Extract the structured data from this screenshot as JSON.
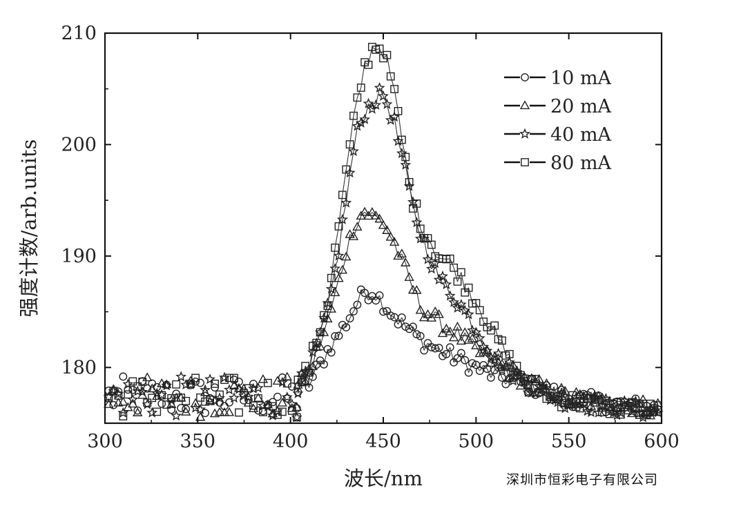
{
  "chart_data": {
    "type": "scatter",
    "xlabel": "波长/nm",
    "ylabel": "强度计数/arb.units",
    "xlim": [
      300,
      600
    ],
    "ylim": [
      175,
      210
    ],
    "xticks": [
      300,
      350,
      400,
      450,
      500,
      550,
      600
    ],
    "yticks": [
      180,
      190,
      200,
      210
    ],
    "legend_position": "top-right",
    "baseline_noise_band": [
      175.5,
      179.2
    ],
    "series": [
      {
        "name": "10 mA",
        "marker": "circle",
        "x": [
          400,
          410,
          420,
          430,
          435,
          440,
          445,
          450,
          455,
          460,
          470,
          480,
          490,
          500,
          510,
          520,
          530,
          540,
          550,
          570,
          600
        ],
        "y": [
          177.5,
          178.5,
          181.5,
          184.0,
          185.5,
          186.8,
          186.8,
          185.8,
          184.8,
          184.0,
          182.5,
          181.5,
          180.8,
          180.0,
          179.3,
          178.8,
          178.3,
          177.8,
          177.3,
          176.8,
          176.3
        ]
      },
      {
        "name": "20 mA",
        "marker": "triangle",
        "x": [
          400,
          410,
          420,
          425,
          430,
          435,
          440,
          445,
          450,
          455,
          460,
          465,
          470,
          480,
          490,
          500,
          510,
          520,
          530,
          540,
          550,
          570,
          600
        ],
        "y": [
          177.5,
          179.5,
          184.0,
          187.0,
          190.5,
          193.0,
          194.0,
          193.5,
          193.0,
          191.5,
          189.5,
          187.5,
          185.5,
          184.0,
          183.0,
          181.5,
          180.5,
          179.5,
          178.5,
          177.8,
          177.3,
          176.8,
          176.3
        ]
      },
      {
        "name": "40 mA",
        "marker": "star",
        "x": [
          400,
          410,
          420,
          425,
          430,
          435,
          440,
          445,
          450,
          455,
          460,
          465,
          470,
          475,
          480,
          490,
          500,
          510,
          520,
          530,
          540,
          550,
          570,
          600
        ],
        "y": [
          177.5,
          179.5,
          185.0,
          189.5,
          195.0,
          200.5,
          203.0,
          204.0,
          204.5,
          202.5,
          199.0,
          195.0,
          192.0,
          190.0,
          188.0,
          186.0,
          183.5,
          181.0,
          179.5,
          178.3,
          177.5,
          177.0,
          176.5,
          176.0
        ]
      },
      {
        "name": "80 mA",
        "marker": "square",
        "x": [
          400,
          410,
          420,
          425,
          430,
          435,
          440,
          445,
          450,
          455,
          460,
          465,
          470,
          475,
          480,
          485,
          490,
          500,
          510,
          520,
          530,
          540,
          550,
          570,
          600
        ],
        "y": [
          177.5,
          180.0,
          186.0,
          191.5,
          197.5,
          203.0,
          207.0,
          209.0,
          208.5,
          205.5,
          200.5,
          195.5,
          193.0,
          191.5,
          190.0,
          189.5,
          188.5,
          186.0,
          183.0,
          180.0,
          178.5,
          177.5,
          177.0,
          176.5,
          176.0
        ]
      }
    ]
  },
  "watermark": "深圳市恒彩电子有限公司"
}
